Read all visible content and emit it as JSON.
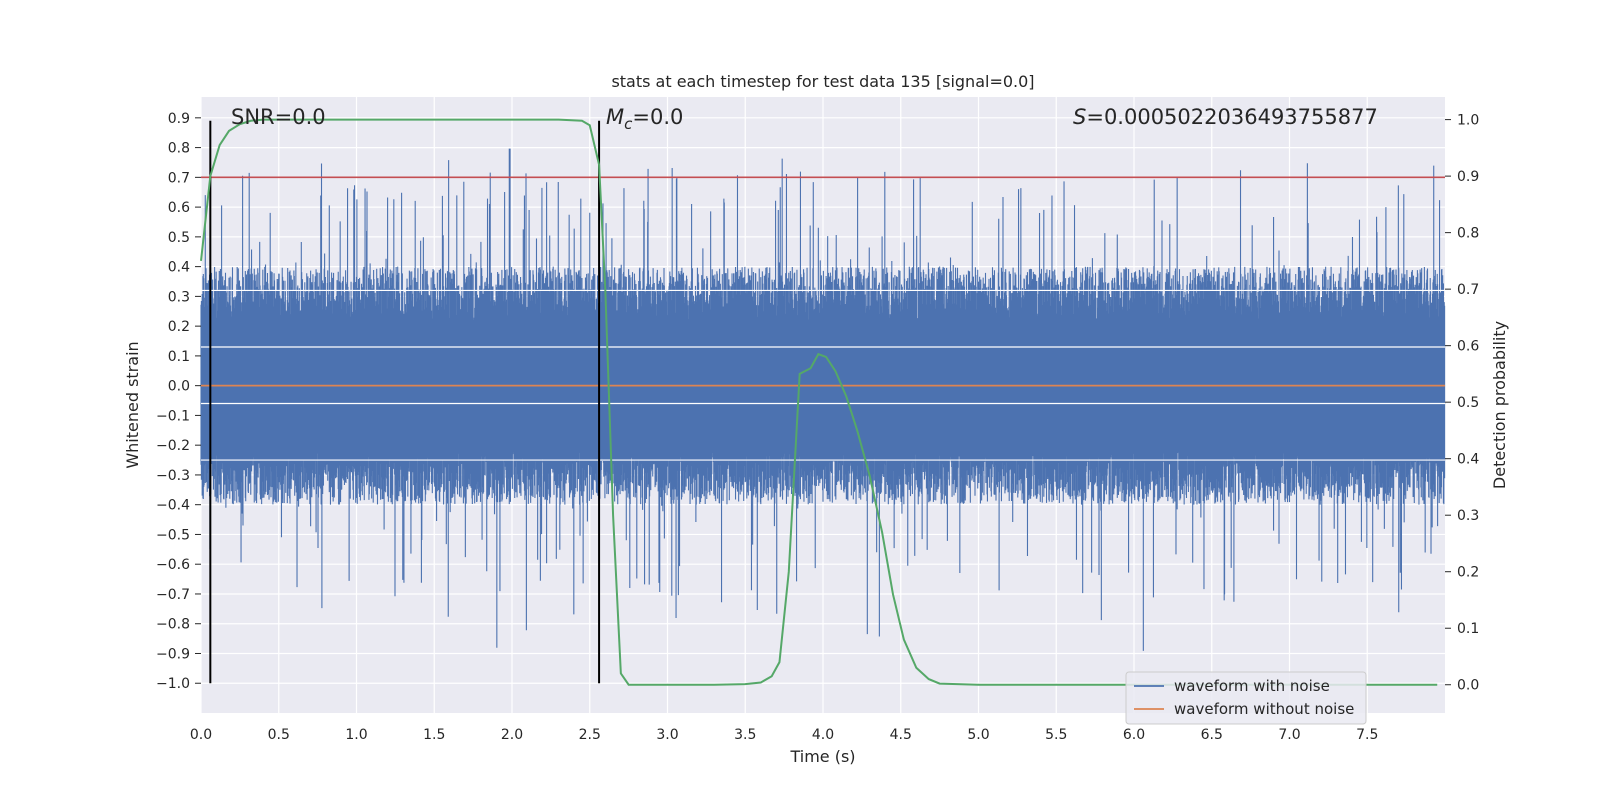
{
  "chart_data": {
    "type": "line",
    "title": "stats at each timestep for test data 135 [signal=0.0]",
    "xlabel": "Time (s)",
    "ylabel": "Whitened strain",
    "y2label": "Detection probability",
    "xlim": [
      0.0,
      8.0
    ],
    "ylim": [
      -1.1,
      0.97
    ],
    "y2lim": [
      -0.05,
      1.04
    ],
    "xticks": [
      "0.0",
      "0.5",
      "1.0",
      "1.5",
      "2.0",
      "2.5",
      "3.0",
      "3.5",
      "4.0",
      "4.5",
      "5.0",
      "5.5",
      "6.0",
      "6.5",
      "7.0",
      "7.5"
    ],
    "xtick_values": [
      0,
      0.5,
      1,
      1.5,
      2,
      2.5,
      3,
      3.5,
      4,
      4.5,
      5,
      5.5,
      6,
      6.5,
      7,
      7.5
    ],
    "yticks": [
      "0.9",
      "0.8",
      "0.7",
      "0.6",
      "0.5",
      "0.4",
      "0.3",
      "0.2",
      "0.1",
      "0.0",
      "−0.1",
      "−0.2",
      "−0.3",
      "−0.4",
      "−0.5",
      "−0.6",
      "−0.7",
      "−0.8",
      "−0.9",
      "−1.0"
    ],
    "ytick_values": [
      0.9,
      0.8,
      0.7,
      0.6,
      0.5,
      0.4,
      0.3,
      0.2,
      0.1,
      0.0,
      -0.1,
      -0.2,
      -0.3,
      -0.4,
      -0.5,
      -0.6,
      -0.7,
      -0.8,
      -0.9,
      -1.0
    ],
    "y2ticks": [
      "1.0",
      "0.9",
      "0.8",
      "0.7",
      "0.6",
      "0.5",
      "0.4",
      "0.3",
      "0.2",
      "0.1",
      "0.0"
    ],
    "y2tick_values": [
      1.0,
      0.9,
      0.8,
      0.7,
      0.6,
      0.5,
      0.4,
      0.3,
      0.2,
      0.1,
      0.0
    ],
    "annotations": {
      "snr": "SNR=0.0",
      "mc_symbol": "M",
      "mc_sub": "c",
      "mc_value": "=0.0",
      "s_symbol": "S",
      "s_value": "=0.0005022036493755877"
    },
    "threshold": 0.7,
    "vertical_lines": [
      0.06,
      2.56
    ],
    "noise_series": {
      "name": "waveform with noise",
      "color": "#4c72b0",
      "description": "dense noisy whitened strain, band roughly ±0.35 with spikes to ±0.9"
    },
    "clean_series": {
      "name": "waveform without noise",
      "color": "#dd8452",
      "value": 0.0
    },
    "probability_series": {
      "color": "#55a868",
      "x": [
        0.0,
        0.06,
        0.12,
        0.18,
        0.25,
        0.32,
        0.4,
        0.6,
        1.0,
        1.5,
        2.0,
        2.3,
        2.45,
        2.5,
        2.56,
        2.6,
        2.65,
        2.7,
        2.75,
        2.8,
        3.0,
        3.3,
        3.5,
        3.6,
        3.67,
        3.72,
        3.78,
        3.85,
        3.92,
        3.97,
        4.02,
        4.08,
        4.15,
        4.22,
        4.3,
        4.38,
        4.45,
        4.52,
        4.6,
        4.68,
        4.75,
        5.0,
        6.0,
        7.0,
        7.95
      ],
      "y": [
        0.75,
        0.9,
        0.955,
        0.98,
        0.992,
        0.998,
        1.0,
        1.0,
        1.0,
        1.0,
        1.0,
        1.0,
        0.998,
        0.99,
        0.92,
        0.7,
        0.3,
        0.02,
        0.0,
        0.0,
        0.0,
        0.0,
        0.001,
        0.004,
        0.015,
        0.04,
        0.2,
        0.55,
        0.56,
        0.585,
        0.58,
        0.555,
        0.51,
        0.45,
        0.37,
        0.27,
        0.16,
        0.08,
        0.03,
        0.01,
        0.002,
        0.0,
        0.0,
        0.0,
        0.0
      ]
    },
    "threshold_color": "#c44e52",
    "vline_color": "#000000",
    "legend": [
      "waveform with noise",
      "waveform without noise"
    ],
    "legend_position": "lower-right",
    "grid": true
  }
}
